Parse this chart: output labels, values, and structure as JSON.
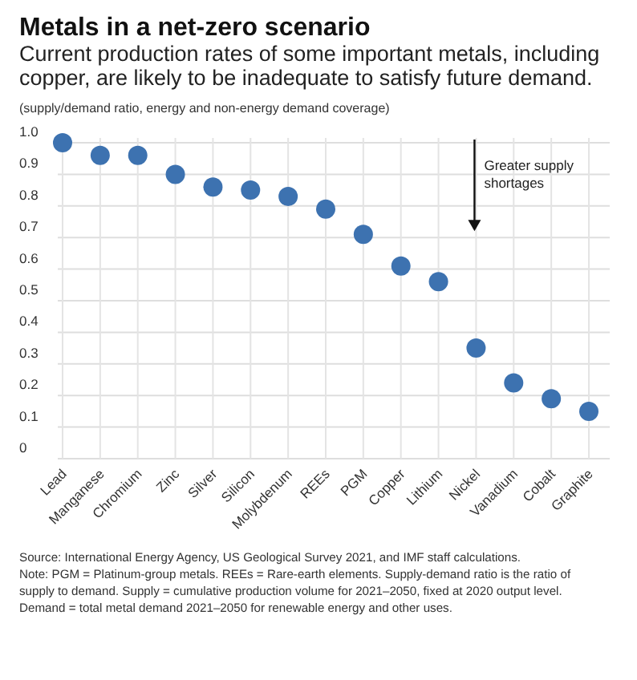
{
  "chart_data": {
    "type": "scatter",
    "title": "Metals in a net-zero scenario",
    "subtitle": "Current production rates of some important metals, including copper, are likely to be inadequate to satisfy future demand.",
    "ylabel": "(supply/demand ratio, energy and non-energy demand coverage)",
    "categories": [
      "Lead",
      "Manganese",
      "Chromium",
      "Zinc",
      "Silver",
      "Silicon",
      "Molybdenum",
      "REEs",
      "PGM",
      "Copper",
      "Lithium",
      "Nickel",
      "Vanadium",
      "Cobalt",
      "Graphite"
    ],
    "series": [
      {
        "color": "#3d72b0",
        "values": [
          1.0,
          0.96,
          0.96,
          0.9,
          0.86,
          0.85,
          0.83,
          0.79,
          0.71,
          0.61,
          0.56,
          0.35,
          0.24,
          0.19,
          0.15
        ]
      }
    ],
    "ylim": [
      0,
      1
    ],
    "yticks": [
      0,
      0.1,
      0.2,
      0.3,
      0.4,
      0.5,
      0.6,
      0.7,
      0.8,
      0.9,
      {
        "value": 1,
        "label": "1.0"
      }
    ],
    "grid": true,
    "marker": "circle",
    "annotations": [
      "Greater supply shortages",
      "Source: International Energy Agency, US Geological Survey 2021, and IMF staff calculations.",
      "Note: PGM = Platinum-group metals. REEs = Rare-earth elements. Supply-demand ratio is the ratio of supply to demand. Supply = cumulative production volume for 2021–2050, fixed at 2020 output level. Demand = total metal demand 2021–2050 for renewable energy and other uses."
    ]
  }
}
